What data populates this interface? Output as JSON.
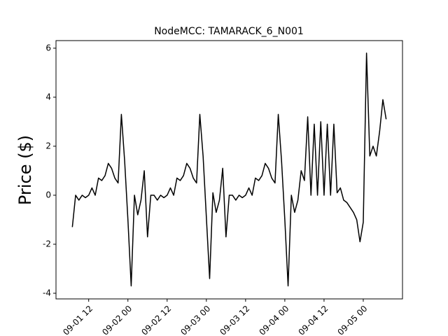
{
  "chart_data": {
    "type": "line",
    "title": "NodeMCC: TAMARACK_6_N001",
    "y_label": "Price ($)",
    "x": [
      "09-01 07",
      "09-01 08",
      "09-01 09",
      "09-01 10",
      "09-01 11",
      "09-01 12",
      "09-01 13",
      "09-01 14",
      "09-01 15",
      "09-01 16",
      "09-01 17",
      "09-01 18",
      "09-01 19",
      "09-01 20",
      "09-01 21",
      "09-01 22",
      "09-01 23",
      "09-02 00",
      "09-02 01",
      "09-02 02",
      "09-02 03",
      "09-02 04",
      "09-02 05",
      "09-02 06",
      "09-02 07",
      "09-02 08",
      "09-02 09",
      "09-02 10",
      "09-02 11",
      "09-02 12",
      "09-02 13",
      "09-02 14",
      "09-02 15",
      "09-02 16",
      "09-02 17",
      "09-02 18",
      "09-02 19",
      "09-02 20",
      "09-02 21",
      "09-02 22",
      "09-02 23",
      "09-03 00",
      "09-03 01",
      "09-03 02",
      "09-03 03",
      "09-03 04",
      "09-03 05",
      "09-03 06",
      "09-03 07",
      "09-03 08",
      "09-03 09",
      "09-03 10",
      "09-03 11",
      "09-03 12",
      "09-03 13",
      "09-03 14",
      "09-03 15",
      "09-03 16",
      "09-03 17",
      "09-03 18",
      "09-03 19",
      "09-03 20",
      "09-03 21",
      "09-03 22",
      "09-03 23",
      "09-04 00",
      "09-04 01",
      "09-04 02",
      "09-04 03",
      "09-04 04",
      "09-04 05",
      "09-04 06",
      "09-04 07",
      "09-04 08",
      "09-04 09",
      "09-04 10",
      "09-04 11",
      "09-04 12",
      "09-04 13",
      "09-04 14",
      "09-04 15",
      "09-04 16",
      "09-04 17",
      "09-04 18",
      "09-04 19",
      "09-04 20",
      "09-04 21",
      "09-04 22",
      "09-04 23",
      "09-05 00",
      "09-05 01",
      "09-05 02",
      "09-05 03",
      "09-05 04",
      "09-05 05",
      "09-05 06",
      "09-05 07"
    ],
    "series": [
      {
        "name": "NodeMCC",
        "color": "#000000",
        "values": [
          -1.3,
          0,
          -0.2,
          0,
          -0.1,
          0,
          0.3,
          0,
          0.7,
          0.6,
          0.8,
          1.3,
          1.1,
          0.7,
          0.5,
          3.3,
          1.4,
          -1.0,
          -3.7,
          0,
          -0.8,
          -0.2,
          1.0,
          -1.7,
          0,
          0,
          -0.2,
          0,
          -0.1,
          0,
          0.3,
          0,
          0.7,
          0.6,
          0.8,
          1.3,
          1.1,
          0.7,
          0.5,
          3.3,
          1.6,
          -0.9,
          -3.4,
          0.1,
          -0.7,
          -0.2,
          1.1,
          -1.7,
          0,
          0,
          -0.2,
          0,
          -0.1,
          0,
          0.3,
          0,
          0.7,
          0.6,
          0.8,
          1.3,
          1.1,
          0.7,
          0.5,
          3.3,
          1.4,
          -1.0,
          -3.7,
          0,
          -0.7,
          -0.2,
          1.0,
          0.6,
          3.2,
          0,
          2.9,
          0,
          3.0,
          0,
          2.9,
          0,
          2.9,
          0.1,
          0.3,
          -0.2,
          -0.3,
          -0.5,
          -0.7,
          -1.0,
          -1.9,
          -1.1,
          5.8,
          1.6,
          2.0,
          1.6,
          2.6,
          3.9,
          3.1
        ]
      }
    ],
    "xlim": [
      "09-01 02",
      "09-05 12"
    ],
    "xticks": [
      "09-01 12",
      "09-02 00",
      "09-02 12",
      "09-03 00",
      "09-03 12",
      "09-04 00",
      "09-04 12",
      "09-05 00"
    ],
    "ylim": [
      -4.23,
      6.31
    ],
    "yticks": [
      -4,
      -2,
      0,
      2,
      4,
      6
    ]
  }
}
